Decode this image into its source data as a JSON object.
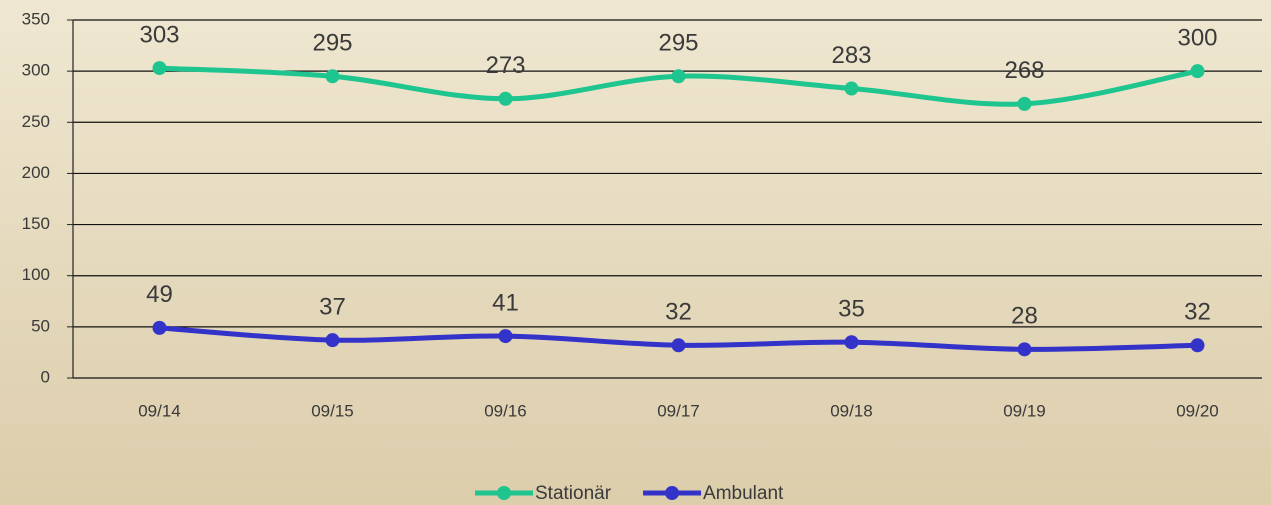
{
  "chart_data": {
    "type": "line",
    "categories": [
      "09/14",
      "09/15",
      "09/16",
      "09/17",
      "09/18",
      "09/19",
      "09/20"
    ],
    "series": [
      {
        "name": "Stationär",
        "color": "#1fc58e",
        "values": [
          303,
          295,
          273,
          295,
          283,
          268,
          300
        ]
      },
      {
        "name": "Ambulant",
        "color": "#3333c9",
        "values": [
          49,
          37,
          41,
          32,
          35,
          28,
          32
        ]
      }
    ],
    "ylim": [
      0,
      350
    ],
    "yticks": [
      0,
      50,
      100,
      150,
      200,
      250,
      300,
      350
    ],
    "grid": true,
    "legend": "bottom"
  }
}
